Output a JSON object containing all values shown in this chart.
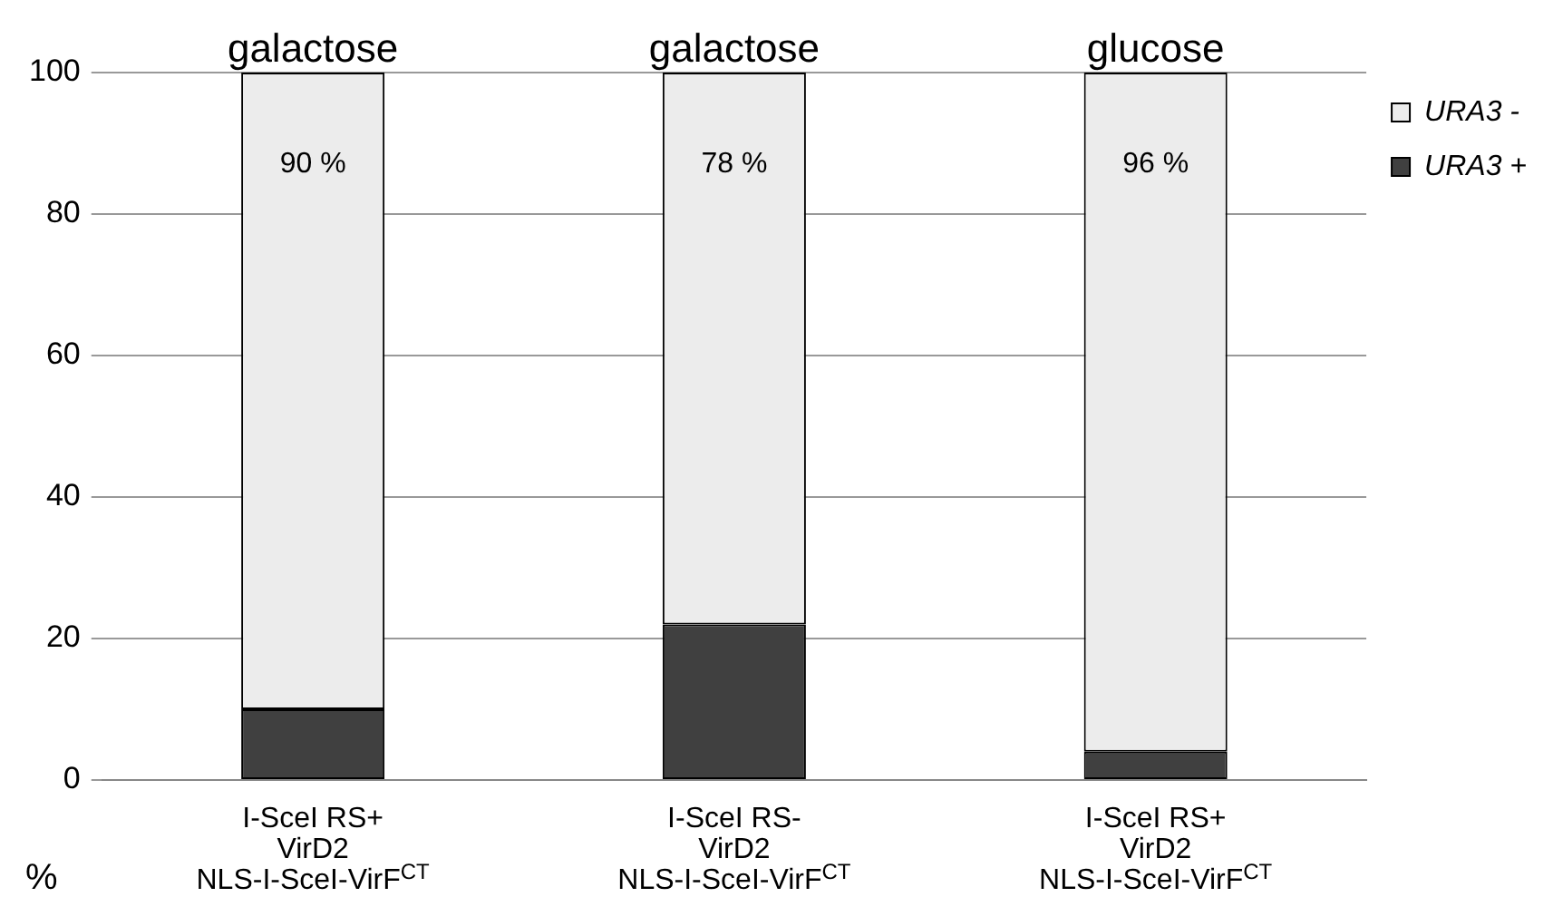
{
  "chart_data": {
    "type": "bar",
    "stacked": true,
    "categories": [
      "I-SceI RS+\nVirD2\nNLS-I-SceI-VirF$^{CT}$",
      "I-SceI RS-\nVirD2\nNLS-I-SceI-VirF$^{CT}$",
      "I-SceI RS+\nVirD2\nNLS-I-SceI-VirF$^{CT}$"
    ],
    "series": [
      {
        "name": "URA3 +",
        "color": "#404040",
        "values": [
          10,
          22,
          4
        ]
      },
      {
        "name": "URA3 -",
        "color": "#ececec",
        "values": [
          90,
          78,
          96
        ],
        "value_labels": [
          "90 %",
          "78 %",
          "96 %"
        ]
      }
    ],
    "ylabel": "%",
    "ylim": [
      0,
      100
    ],
    "yticks": [
      0,
      20,
      40,
      60,
      80,
      100
    ],
    "grid": "y",
    "legend": "top right",
    "annotations": [
      "galactose",
      "galactose",
      "glucose"
    ]
  }
}
